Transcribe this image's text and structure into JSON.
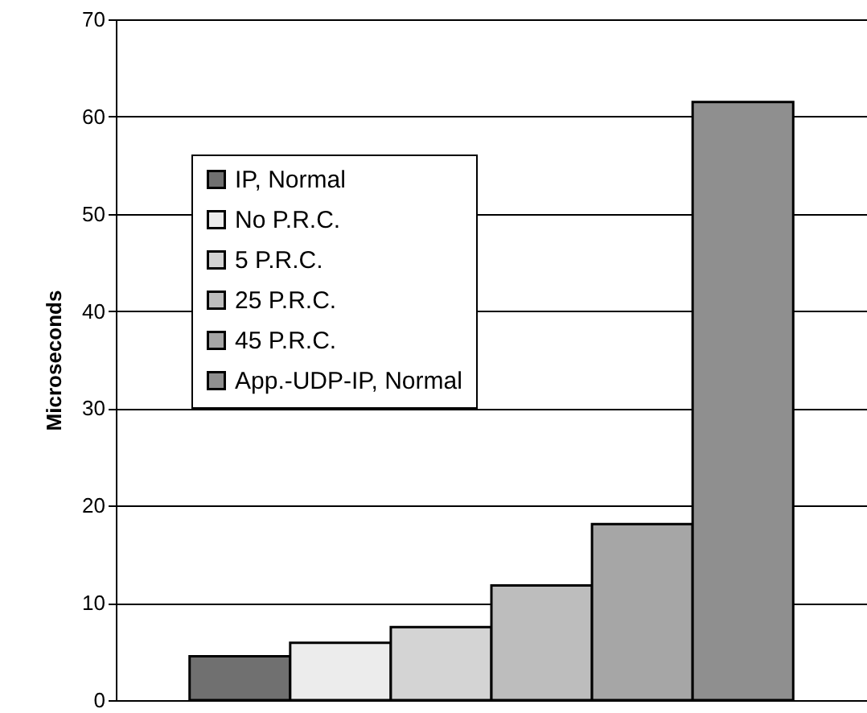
{
  "chart_data": {
    "type": "bar",
    "ylabel": "Microseconds",
    "categories": [
      null
    ],
    "series": [
      {
        "name": "IP, Normal",
        "color": "#707070",
        "values": [
          4.5
        ]
      },
      {
        "name": "No P.R.C.",
        "color": "#ececec",
        "values": [
          5.9
        ]
      },
      {
        "name": "5 P.R.C.",
        "color": "#d4d4d4",
        "values": [
          7.5
        ]
      },
      {
        "name": "25 P.R.C.",
        "color": "#bdbdbd",
        "values": [
          11.8
        ]
      },
      {
        "name": "45 P.R.C.",
        "color": "#a6a6a6",
        "values": [
          18.1
        ]
      },
      {
        "name": "App.-UDP-IP, Normal",
        "color": "#8f8f8f",
        "values": [
          61.5
        ]
      }
    ],
    "ylim": [
      0,
      70
    ],
    "yticks": [
      0,
      10,
      20,
      30,
      40,
      50,
      60,
      70
    ],
    "grid": "y",
    "legend": "top left",
    "tick_labels": "y"
  }
}
